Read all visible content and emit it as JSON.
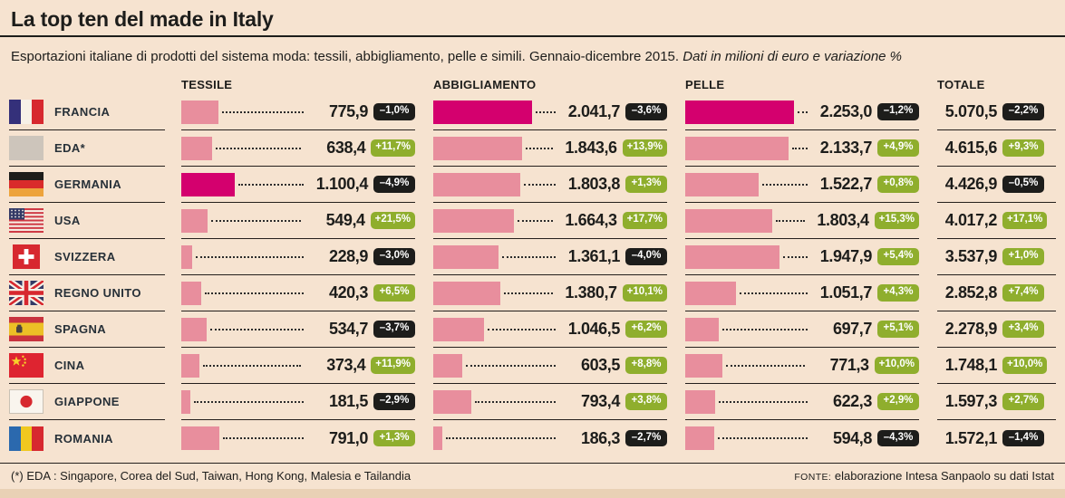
{
  "title": "La top ten del made in Italy",
  "subtitle": {
    "main": "Esportazioni italiane di prodotti del sistema moda: tessili, abbigliamento, pelle e simili. Gennaio-dicembre 2015.",
    "italic": "Dati in milioni di euro e variazione %"
  },
  "column_headers": [
    "TESSILE",
    "ABBIGLIAMENTO",
    "PELLE",
    "TOTALE"
  ],
  "footer": {
    "note": "(*) EDA : Singapore, Corea del Sud, Taiwan, Hong Kong, Malesia e Tailandia",
    "source_label": "FONTE:",
    "source": "elaborazione Intesa Sanpaolo su dati Istat"
  },
  "colors": {
    "background": "#f6e3d0",
    "bar": "#e88e9d",
    "bar_highlight": "#d4006e",
    "badge_positive": "#8fae2d",
    "badge_negative": "#1d1d1b",
    "text": "#1d1d1b"
  },
  "chart_data": {
    "type": "bar",
    "orientation": "horizontal",
    "unit": "milioni di euro",
    "period": "Gennaio-dicembre 2015",
    "bar_scale_max": 2253.0,
    "categories": [
      "FRANCIA",
      "EDA*",
      "GERMANIA",
      "USA",
      "SVIZZERA",
      "REGNO UNITO",
      "SPAGNA",
      "CINA",
      "GIAPPONE",
      "ROMANIA"
    ],
    "flags": [
      "fr",
      "eda",
      "de",
      "us",
      "ch",
      "gb",
      "es",
      "cn",
      "jp",
      "ro"
    ],
    "series": [
      {
        "name": "TESSILE",
        "has_bars": true,
        "values": [
          775.9,
          638.4,
          1100.4,
          549.4,
          228.9,
          420.3,
          534.7,
          373.4,
          181.5,
          791.0
        ],
        "labels": [
          "775,9",
          "638,4",
          "1.100,4",
          "549,4",
          "228,9",
          "420,3",
          "534,7",
          "373,4",
          "181,5",
          "791,0"
        ],
        "changes": [
          "–1,0%",
          "+11,7%",
          "–4,9%",
          "+21,5%",
          "–3,0%",
          "+6,5%",
          "–3,7%",
          "+11,9%",
          "–2,9%",
          "+1,3%"
        ]
      },
      {
        "name": "ABBIGLIAMENTO",
        "has_bars": true,
        "values": [
          2041.7,
          1843.6,
          1803.8,
          1664.3,
          1361.1,
          1380.7,
          1046.5,
          603.5,
          793.4,
          186.3
        ],
        "labels": [
          "2.041,7",
          "1.843,6",
          "1.803,8",
          "1.664,3",
          "1.361,1",
          "1.380,7",
          "1.046,5",
          "603,5",
          "793,4",
          "186,3"
        ],
        "changes": [
          "–3,6%",
          "+13,9%",
          "+1,3%",
          "+17,7%",
          "–4,0%",
          "+10,1%",
          "+6,2%",
          "+8,8%",
          "+3,8%",
          "–2,7%"
        ]
      },
      {
        "name": "PELLE",
        "has_bars": true,
        "values": [
          2253.0,
          2133.7,
          1522.7,
          1803.4,
          1947.9,
          1051.7,
          697.7,
          771.3,
          622.3,
          594.8
        ],
        "labels": [
          "2.253,0",
          "2.133,7",
          "1.522,7",
          "1.803,4",
          "1.947,9",
          "1.051,7",
          "697,7",
          "771,3",
          "622,3",
          "594,8"
        ],
        "changes": [
          "–1,2%",
          "+4,9%",
          "+0,8%",
          "+15,3%",
          "+5,4%",
          "+4,3%",
          "+5,1%",
          "+10,0%",
          "+2,9%",
          "–4,3%"
        ]
      },
      {
        "name": "TOTALE",
        "has_bars": false,
        "values": [
          5070.5,
          4615.6,
          4426.9,
          4017.2,
          3537.9,
          2852.8,
          2278.9,
          1748.1,
          1597.3,
          1572.1
        ],
        "labels": [
          "5.070,5",
          "4.615,6",
          "4.426,9",
          "4.017,2",
          "3.537,9",
          "2.852,8",
          "2.278,9",
          "1.748,1",
          "1.597,3",
          "1.572,1"
        ],
        "changes": [
          "–2,2%",
          "+9,3%",
          "–0,5%",
          "+17,1%",
          "+1,0%",
          "+7,4%",
          "+3,4%",
          "+10,0%",
          "+2,7%",
          "–1,4%"
        ]
      }
    ]
  }
}
